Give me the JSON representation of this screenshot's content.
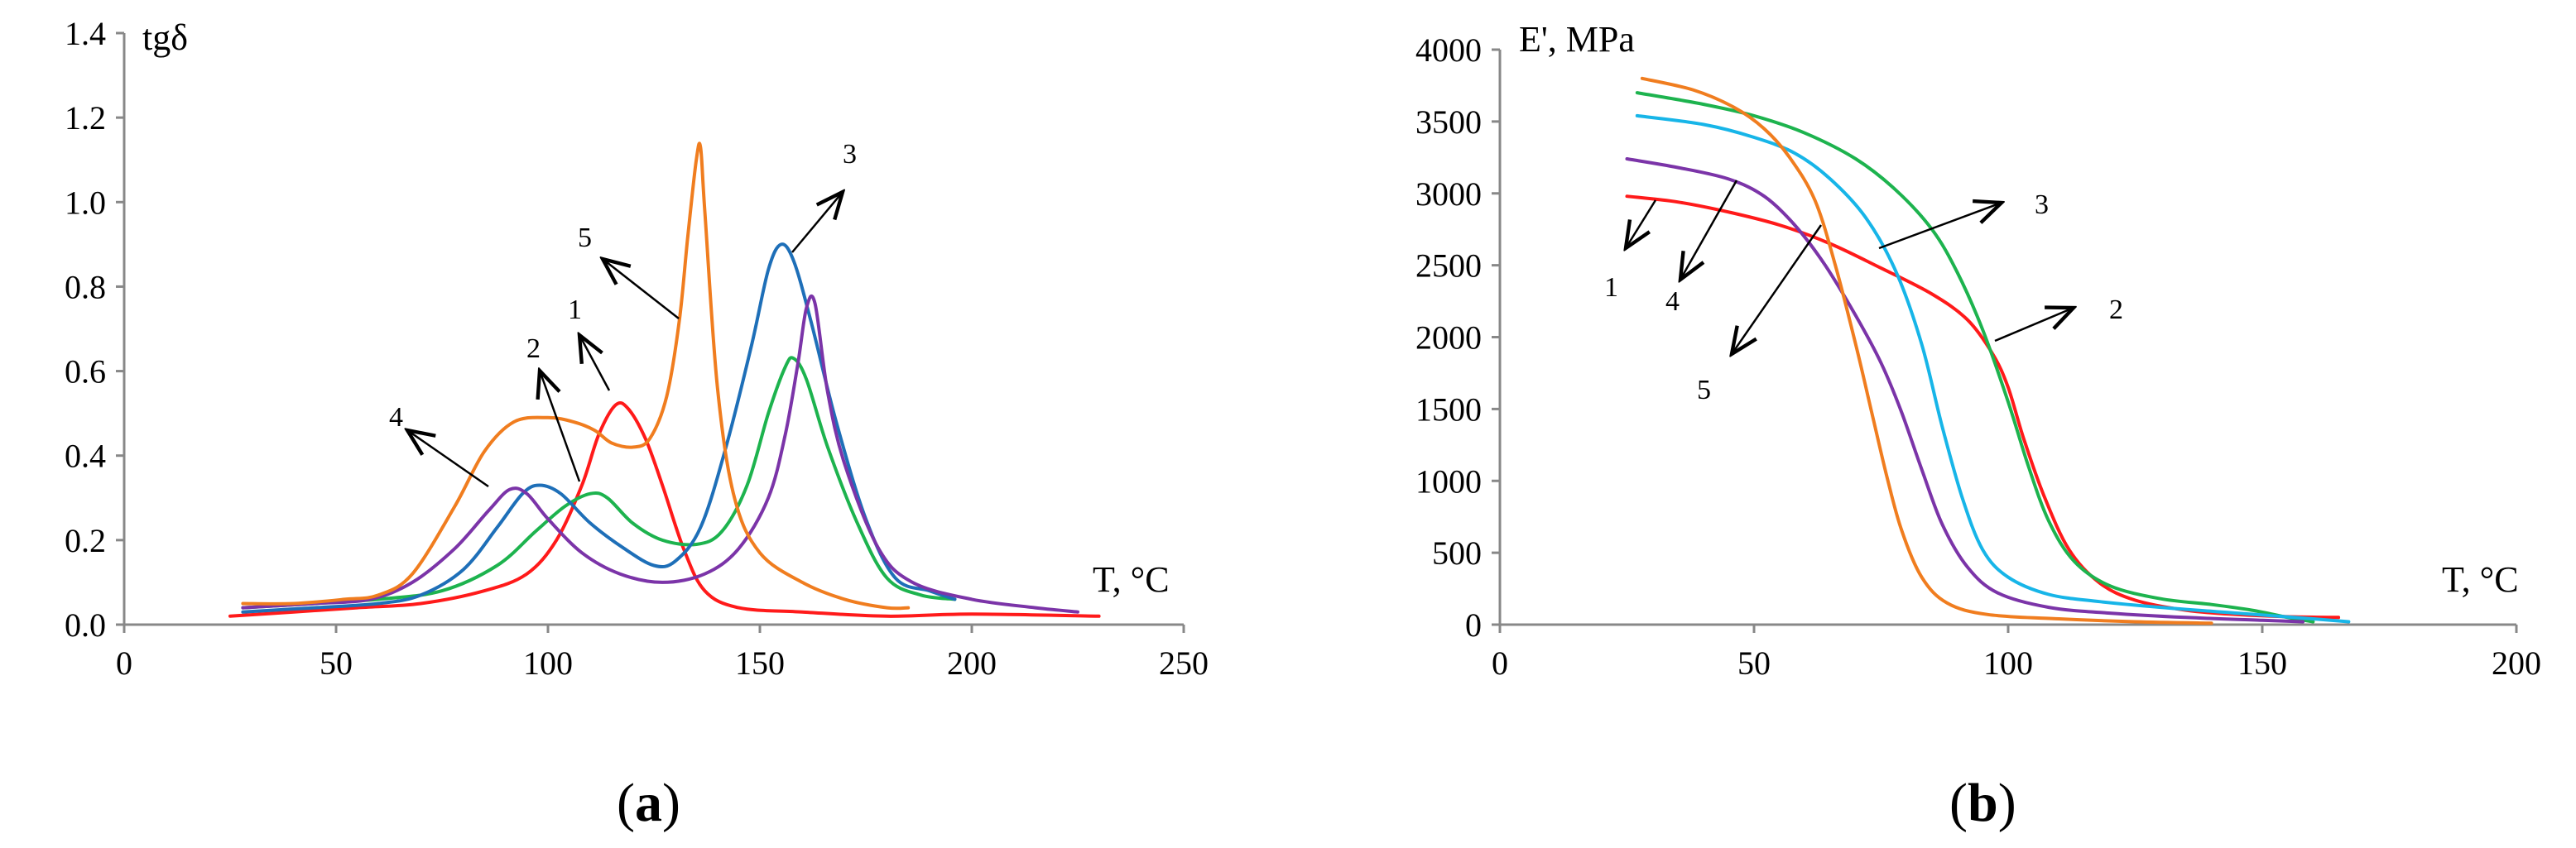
{
  "chart_data": [
    {
      "id": "a",
      "type": "line",
      "panel_label": "a",
      "title": "",
      "ylabel": "tgδ",
      "xlabel": "T, °C",
      "xlim": [
        0,
        250
      ],
      "ylim": [
        0,
        1.4
      ],
      "x_ticks": [
        "0",
        "50",
        "100",
        "150",
        "200",
        "250"
      ],
      "y_ticks": [
        "0.0",
        "0.2",
        "0.4",
        "0.6",
        "0.8",
        "1.0",
        "1.2",
        "1.4"
      ],
      "grid": false,
      "series": [
        {
          "name": "1",
          "color": "#ff1a1a",
          "points": [
            [
              25,
              0.02
            ],
            [
              40,
              0.03
            ],
            [
              55,
              0.04
            ],
            [
              70,
              0.05
            ],
            [
              85,
              0.08
            ],
            [
              95,
              0.12
            ],
            [
              102,
              0.2
            ],
            [
              108,
              0.33
            ],
            [
              112,
              0.45
            ],
            [
              116,
              0.52
            ],
            [
              119,
              0.51
            ],
            [
              123,
              0.44
            ],
            [
              127,
              0.33
            ],
            [
              132,
              0.18
            ],
            [
              137,
              0.08
            ],
            [
              145,
              0.04
            ],
            [
              160,
              0.03
            ],
            [
              180,
              0.02
            ],
            [
              200,
              0.025
            ],
            [
              230,
              0.02
            ]
          ]
        },
        {
          "name": "2",
          "color": "#1db34e",
          "points": [
            [
              28,
              0.04
            ],
            [
              45,
              0.05
            ],
            [
              60,
              0.06
            ],
            [
              75,
              0.08
            ],
            [
              88,
              0.14
            ],
            [
              97,
              0.22
            ],
            [
              104,
              0.28
            ],
            [
              110,
              0.31
            ],
            [
              114,
              0.3
            ],
            [
              120,
              0.24
            ],
            [
              127,
              0.2
            ],
            [
              135,
              0.19
            ],
            [
              141,
              0.22
            ],
            [
              147,
              0.33
            ],
            [
              152,
              0.5
            ],
            [
              156,
              0.61
            ],
            [
              158,
              0.63
            ],
            [
              161,
              0.58
            ],
            [
              166,
              0.42
            ],
            [
              173,
              0.24
            ],
            [
              180,
              0.11
            ],
            [
              188,
              0.07
            ],
            [
              196,
              0.06
            ]
          ]
        },
        {
          "name": "3",
          "color": "#1e6fb8",
          "points": [
            [
              28,
              0.03
            ],
            [
              45,
              0.04
            ],
            [
              60,
              0.05
            ],
            [
              70,
              0.07
            ],
            [
              80,
              0.13
            ],
            [
              88,
              0.23
            ],
            [
              94,
              0.31
            ],
            [
              98,
              0.33
            ],
            [
              103,
              0.31
            ],
            [
              110,
              0.24
            ],
            [
              118,
              0.18
            ],
            [
              125,
              0.14
            ],
            [
              130,
              0.15
            ],
            [
              136,
              0.23
            ],
            [
              142,
              0.42
            ],
            [
              148,
              0.66
            ],
            [
              152,
              0.84
            ],
            [
              155,
              0.9
            ],
            [
              158,
              0.86
            ],
            [
              162,
              0.72
            ],
            [
              168,
              0.48
            ],
            [
              175,
              0.25
            ],
            [
              182,
              0.11
            ],
            [
              190,
              0.08
            ],
            [
              196,
              0.06
            ]
          ]
        },
        {
          "name": "4",
          "color": "#7b34a8",
          "points": [
            [
              28,
              0.04
            ],
            [
              45,
              0.05
            ],
            [
              58,
              0.06
            ],
            [
              68,
              0.1
            ],
            [
              78,
              0.18
            ],
            [
              86,
              0.27
            ],
            [
              91,
              0.32
            ],
            [
              95,
              0.31
            ],
            [
              100,
              0.25
            ],
            [
              108,
              0.17
            ],
            [
              117,
              0.12
            ],
            [
              127,
              0.1
            ],
            [
              137,
              0.12
            ],
            [
              145,
              0.18
            ],
            [
              152,
              0.3
            ],
            [
              156,
              0.45
            ],
            [
              159,
              0.62
            ],
            [
              161,
              0.75
            ],
            [
              163,
              0.76
            ],
            [
              166,
              0.55
            ],
            [
              170,
              0.38
            ],
            [
              178,
              0.18
            ],
            [
              186,
              0.1
            ],
            [
              200,
              0.06
            ],
            [
              215,
              0.04
            ],
            [
              225,
              0.03
            ]
          ]
        },
        {
          "name": "5",
          "color": "#f07d1f",
          "points": [
            [
              28,
              0.05
            ],
            [
              40,
              0.05
            ],
            [
              52,
              0.06
            ],
            [
              60,
              0.07
            ],
            [
              68,
              0.12
            ],
            [
              78,
              0.28
            ],
            [
              85,
              0.41
            ],
            [
              92,
              0.48
            ],
            [
              100,
              0.49
            ],
            [
              106,
              0.48
            ],
            [
              111,
              0.46
            ],
            [
              115,
              0.43
            ],
            [
              120,
              0.42
            ],
            [
              124,
              0.44
            ],
            [
              128,
              0.54
            ],
            [
              131,
              0.72
            ],
            [
              133,
              0.92
            ],
            [
              135,
              1.1
            ],
            [
              136,
              1.13
            ],
            [
              137,
              0.98
            ],
            [
              140,
              0.56
            ],
            [
              144,
              0.3
            ],
            [
              150,
              0.17
            ],
            [
              160,
              0.1
            ],
            [
              170,
              0.06
            ],
            [
              180,
              0.04
            ],
            [
              185,
              0.04
            ]
          ]
        }
      ],
      "annotations": [
        {
          "text": "1",
          "target": "1"
        },
        {
          "text": "2",
          "target": "2"
        },
        {
          "text": "3",
          "target": "3"
        },
        {
          "text": "4",
          "target": "4"
        },
        {
          "text": "5",
          "target": "5"
        }
      ]
    },
    {
      "id": "b",
      "type": "line",
      "panel_label": "b",
      "title": "",
      "ylabel": "E', MPa",
      "xlabel": "T, °C",
      "xlim": [
        0,
        200
      ],
      "ylim": [
        0,
        4000
      ],
      "x_ticks": [
        "0",
        "50",
        "100",
        "150",
        "200"
      ],
      "y_ticks": [
        "0",
        "500",
        "1000",
        "1500",
        "2000",
        "2500",
        "3000",
        "3500",
        "4000"
      ],
      "grid": false,
      "series": [
        {
          "name": "1",
          "color": "#ff1a1a",
          "points": [
            [
              25,
              2980
            ],
            [
              35,
              2940
            ],
            [
              45,
              2870
            ],
            [
              55,
              2780
            ],
            [
              65,
              2650
            ],
            [
              75,
              2480
            ],
            [
              85,
              2300
            ],
            [
              92,
              2120
            ],
            [
              97,
              1880
            ],
            [
              100,
              1650
            ],
            [
              103,
              1300
            ],
            [
              107,
              900
            ],
            [
              112,
              520
            ],
            [
              118,
              290
            ],
            [
              125,
              170
            ],
            [
              135,
              100
            ],
            [
              145,
              70
            ],
            [
              155,
              55
            ],
            [
              165,
              50
            ]
          ]
        },
        {
          "name": "2",
          "color": "#1db34e",
          "points": [
            [
              27,
              3700
            ],
            [
              40,
              3620
            ],
            [
              50,
              3540
            ],
            [
              60,
              3420
            ],
            [
              70,
              3240
            ],
            [
              78,
              3020
            ],
            [
              85,
              2750
            ],
            [
              90,
              2450
            ],
            [
              95,
              2050
            ],
            [
              100,
              1550
            ],
            [
              104,
              1100
            ],
            [
              108,
              720
            ],
            [
              113,
              440
            ],
            [
              120,
              270
            ],
            [
              130,
              180
            ],
            [
              140,
              140
            ],
            [
              148,
              100
            ],
            [
              155,
              50
            ],
            [
              160,
              20
            ]
          ]
        },
        {
          "name": "3",
          "color": "#17b5e8",
          "points": [
            [
              27,
              3540
            ],
            [
              40,
              3480
            ],
            [
              50,
              3390
            ],
            [
              58,
              3280
            ],
            [
              65,
              3100
            ],
            [
              72,
              2830
            ],
            [
              78,
              2450
            ],
            [
              83,
              1950
            ],
            [
              87,
              1380
            ],
            [
              91,
              880
            ],
            [
              95,
              520
            ],
            [
              100,
              330
            ],
            [
              108,
              210
            ],
            [
              118,
              160
            ],
            [
              130,
              120
            ],
            [
              145,
              80
            ],
            [
              160,
              40
            ],
            [
              167,
              20
            ]
          ]
        },
        {
          "name": "4",
          "color": "#7b34a8",
          "points": [
            [
              25,
              3240
            ],
            [
              35,
              3180
            ],
            [
              45,
              3100
            ],
            [
              52,
              2980
            ],
            [
              58,
              2780
            ],
            [
              64,
              2500
            ],
            [
              70,
              2150
            ],
            [
              75,
              1820
            ],
            [
              79,
              1480
            ],
            [
              83,
              1080
            ],
            [
              87,
              700
            ],
            [
              92,
              400
            ],
            [
              98,
              220
            ],
            [
              108,
              120
            ],
            [
              120,
              80
            ],
            [
              135,
              50
            ],
            [
              150,
              30
            ],
            [
              158,
              20
            ]
          ]
        },
        {
          "name": "5",
          "color": "#f07d1f",
          "points": [
            [
              28,
              3800
            ],
            [
              38,
              3720
            ],
            [
              46,
              3600
            ],
            [
              52,
              3450
            ],
            [
              57,
              3250
            ],
            [
              62,
              2950
            ],
            [
              66,
              2500
            ],
            [
              70,
              1950
            ],
            [
              73,
              1500
            ],
            [
              76,
              1050
            ],
            [
              79,
              660
            ],
            [
              83,
              330
            ],
            [
              88,
              150
            ],
            [
              96,
              70
            ],
            [
              110,
              40
            ],
            [
              125,
              20
            ],
            [
              140,
              10
            ]
          ]
        }
      ],
      "annotations": [
        {
          "text": "1",
          "target": "1"
        },
        {
          "text": "2",
          "target": "2"
        },
        {
          "text": "3",
          "target": "3"
        },
        {
          "text": "4",
          "target": "4"
        },
        {
          "text": "5",
          "target": "5"
        }
      ]
    }
  ]
}
